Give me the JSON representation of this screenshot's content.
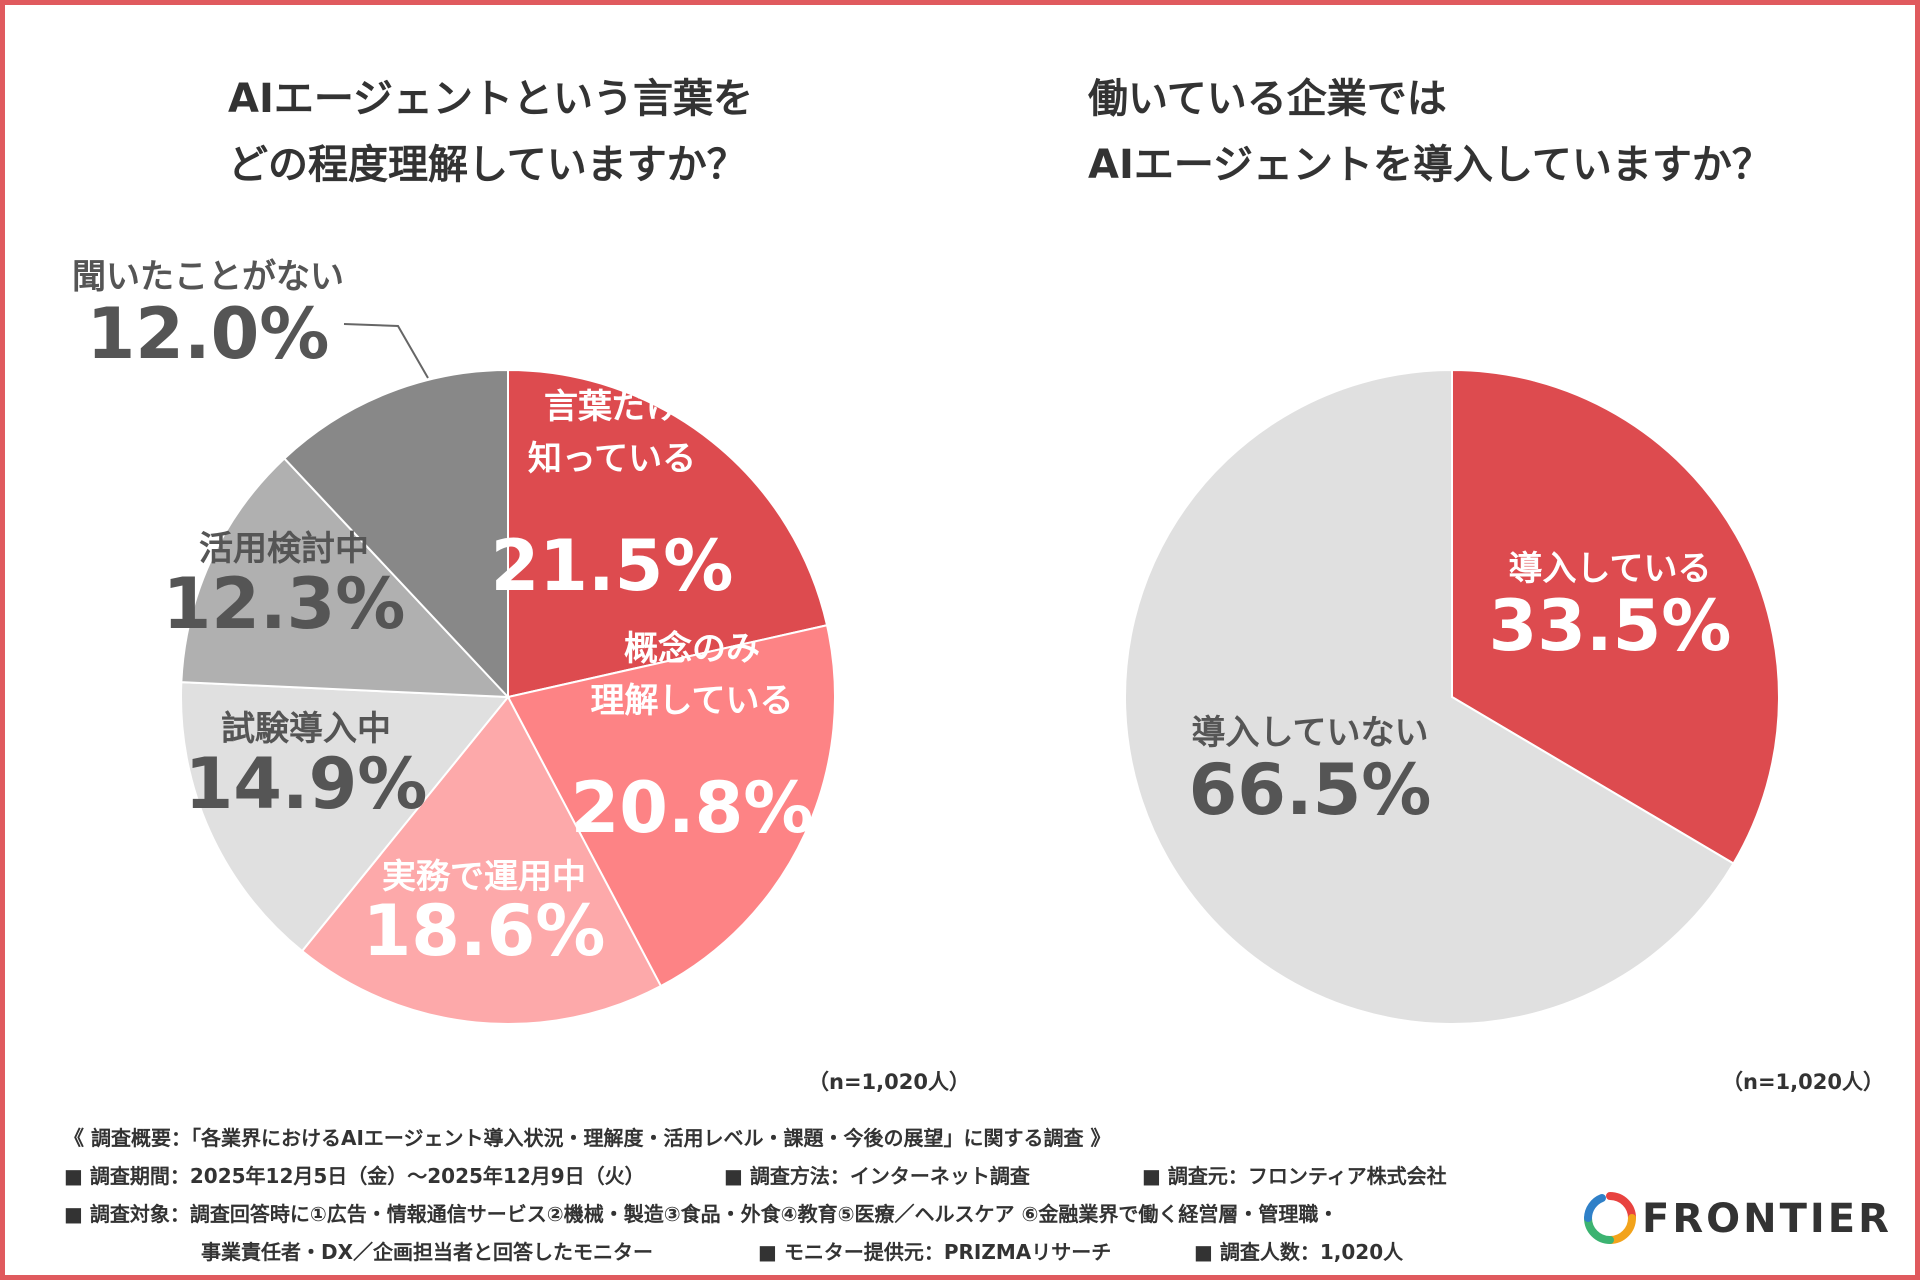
{
  "chart_data": [
    {
      "type": "pie",
      "title": "AIエージェントという言葉をどの程度理解していますか？",
      "title_lines": [
        "AIエージェントという言葉を",
        "どの程度理解していますか？"
      ],
      "n_label": "（n=1,020人）",
      "slices": [
        {
          "label_lines": [
            "言葉だけ",
            "知っている"
          ],
          "value_text": "21.5%",
          "value": 21.5,
          "color": "#dd4b4f",
          "text_color": "#ffffff"
        },
        {
          "label_lines": [
            "概念のみ",
            "理解している"
          ],
          "value_text": "20.8%",
          "value": 20.8,
          "color": "#fd8385",
          "text_color": "#ffffff"
        },
        {
          "label_lines": [
            "実務で運用中"
          ],
          "value_text": "18.6%",
          "value": 18.6,
          "color": "#fda9aa",
          "text_color": "#ffffff"
        },
        {
          "label_lines": [
            "試験導入中"
          ],
          "value_text": "14.9%",
          "value": 14.9,
          "color": "#e0e0e0",
          "text_color": "#555555"
        },
        {
          "label_lines": [
            "活用検討中"
          ],
          "value_text": "12.3%",
          "value": 12.3,
          "color": "#b0b0b0",
          "text_color": "#555555"
        },
        {
          "label_lines": [
            "聞いたことがない"
          ],
          "value_text": "12.0%",
          "value": 12.0,
          "color": "#888888",
          "text_color": "#555555"
        }
      ]
    },
    {
      "type": "pie",
      "title": "働いている企業ではAIエージェントを導入していますか？",
      "title_lines": [
        "働いている企業では",
        "AIエージェントを導入していますか？"
      ],
      "n_label": "（n=1,020人）",
      "slices": [
        {
          "label_lines": [
            "導入している"
          ],
          "value_text": "33.5%",
          "value": 33.5,
          "color": "#dd4b4f",
          "text_color": "#ffffff"
        },
        {
          "label_lines": [
            "導入していない"
          ],
          "value_text": "66.5%",
          "value": 66.5,
          "color": "#e0e0e0",
          "text_color": "#555555"
        }
      ]
    }
  ],
  "footer": {
    "survey_title": "《 調査概要：「各業界におけるAIエージェント導入状況・理解度・活用レベル・課題・今後の展望」に関する調査 》",
    "period": "■ 調査期間：2025年12月5日（金）～2025年12月9日（火）",
    "method": "■ 調査方法：インターネット調査",
    "organizer": "■ 調査元：フロンティア株式会社",
    "target_line1": "■ 調査対象：調査回答時に①広告・情報通信サービス②機械・製造③食品・外食④教育⑤医療／ヘルスケア ⑥金融業界で働く経営層・管理職・",
    "target_line2": "事業責任者・DX／企画担当者と回答したモニター",
    "provider": "■ モニター提供元：PRIZMAリサーチ",
    "respondents": "■ 調査人数：1,020人"
  },
  "logo": {
    "text": "FRONTIER",
    "colors": [
      "#e8423f",
      "#f2a31b",
      "#3cb371",
      "#2f80c8"
    ]
  },
  "frame_color": "#e05a5e"
}
